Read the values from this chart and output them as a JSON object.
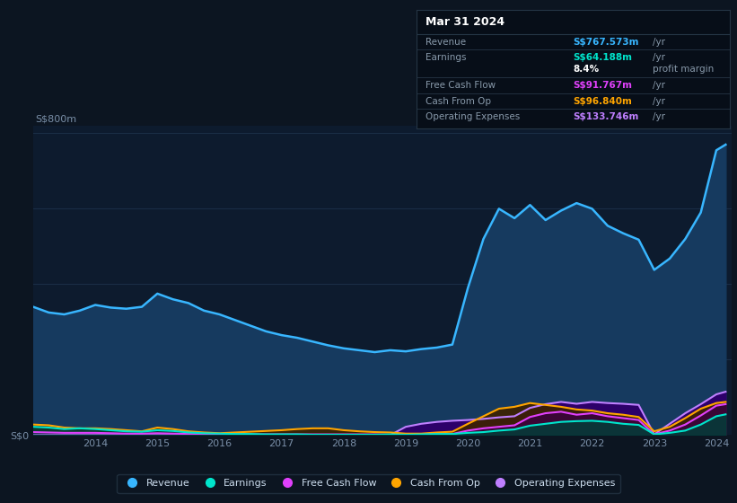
{
  "bg_color": "#0c1521",
  "plot_bg_color": "#0d1b2e",
  "grid_color": "#1a2d45",
  "x_ticks": [
    "2014",
    "2015",
    "2016",
    "2017",
    "2018",
    "2019",
    "2020",
    "2021",
    "2022",
    "2023",
    "2024"
  ],
  "info_box": {
    "date": "Mar 31 2024",
    "rows": [
      {
        "label": "Revenue",
        "value": "S$767.573m",
        "unit": "/yr",
        "color": "#38b6ff"
      },
      {
        "label": "Earnings",
        "value": "S$64.188m",
        "unit": "/yr",
        "color": "#00e5cc"
      },
      {
        "label": "",
        "value": "8.4%",
        "unit": "profit margin",
        "color": "#ffffff"
      },
      {
        "label": "Free Cash Flow",
        "value": "S$91.767m",
        "unit": "/yr",
        "color": "#e040fb"
      },
      {
        "label": "Cash From Op",
        "value": "S$96.840m",
        "unit": "/yr",
        "color": "#ffa500"
      },
      {
        "label": "Operating Expenses",
        "value": "S$133.746m",
        "unit": "/yr",
        "color": "#bf7fff"
      }
    ]
  },
  "series": {
    "revenue": {
      "color": "#38b6ff",
      "fill_color": "#163a5f",
      "x": [
        2013.0,
        2013.25,
        2013.5,
        2013.75,
        2014.0,
        2014.25,
        2014.5,
        2014.75,
        2015.0,
        2015.25,
        2015.5,
        2015.75,
        2016.0,
        2016.25,
        2016.5,
        2016.75,
        2017.0,
        2017.25,
        2017.5,
        2017.75,
        2018.0,
        2018.25,
        2018.5,
        2018.75,
        2019.0,
        2019.25,
        2019.5,
        2019.75,
        2020.0,
        2020.25,
        2020.5,
        2020.75,
        2021.0,
        2021.25,
        2021.5,
        2021.75,
        2022.0,
        2022.25,
        2022.5,
        2022.75,
        2023.0,
        2023.25,
        2023.5,
        2023.75,
        2024.0,
        2024.15
      ],
      "y": [
        340,
        325,
        320,
        330,
        345,
        338,
        335,
        340,
        375,
        360,
        350,
        330,
        320,
        305,
        290,
        275,
        265,
        258,
        248,
        238,
        230,
        225,
        220,
        225,
        222,
        228,
        232,
        240,
        390,
        520,
        600,
        575,
        610,
        570,
        595,
        615,
        600,
        555,
        535,
        518,
        438,
        468,
        520,
        590,
        755,
        770
      ]
    },
    "earnings": {
      "color": "#00e5cc",
      "fill_color": "#00403a",
      "x": [
        2013.0,
        2013.25,
        2013.5,
        2013.75,
        2014.0,
        2014.25,
        2014.5,
        2014.75,
        2015.0,
        2015.25,
        2015.5,
        2015.75,
        2016.0,
        2016.25,
        2016.5,
        2016.75,
        2017.0,
        2017.25,
        2017.5,
        2017.75,
        2018.0,
        2018.25,
        2018.5,
        2018.75,
        2019.0,
        2019.25,
        2019.5,
        2019.75,
        2020.0,
        2020.25,
        2020.5,
        2020.75,
        2021.0,
        2021.25,
        2021.5,
        2021.75,
        2022.0,
        2022.25,
        2022.5,
        2022.75,
        2023.0,
        2023.25,
        2023.5,
        2023.75,
        2024.0,
        2024.15
      ],
      "y": [
        22,
        20,
        16,
        18,
        16,
        13,
        10,
        9,
        13,
        11,
        7,
        5,
        4,
        3,
        3,
        2,
        2,
        2,
        1,
        1,
        1,
        1,
        1,
        2,
        1,
        2,
        3,
        3,
        6,
        8,
        12,
        15,
        25,
        30,
        35,
        37,
        38,
        35,
        30,
        27,
        2,
        6,
        12,
        28,
        50,
        55
      ]
    },
    "free_cash_flow": {
      "color": "#e040fb",
      "fill_color": "#3a0040",
      "x": [
        2013.0,
        2013.25,
        2013.5,
        2013.75,
        2014.0,
        2014.25,
        2014.5,
        2014.75,
        2015.0,
        2015.25,
        2015.5,
        2015.75,
        2016.0,
        2016.25,
        2016.5,
        2016.75,
        2017.0,
        2017.25,
        2017.5,
        2017.75,
        2018.0,
        2018.25,
        2018.5,
        2018.75,
        2019.0,
        2019.25,
        2019.5,
        2019.75,
        2020.0,
        2020.25,
        2020.5,
        2020.75,
        2021.0,
        2021.25,
        2021.5,
        2021.75,
        2022.0,
        2022.25,
        2022.5,
        2022.75,
        2023.0,
        2023.25,
        2023.5,
        2023.75,
        2024.0,
        2024.15
      ],
      "y": [
        8,
        7,
        6,
        6,
        6,
        5,
        4,
        4,
        5,
        4,
        3,
        3,
        3,
        2,
        2,
        2,
        2,
        2,
        2,
        2,
        2,
        2,
        2,
        1,
        0,
        1,
        2,
        3,
        12,
        18,
        22,
        26,
        48,
        58,
        62,
        54,
        58,
        50,
        45,
        40,
        2,
        12,
        28,
        52,
        78,
        82
      ]
    },
    "cash_from_op": {
      "color": "#ffa500",
      "fill_color": "#3d2200",
      "x": [
        2013.0,
        2013.25,
        2013.5,
        2013.75,
        2014.0,
        2014.25,
        2014.5,
        2014.75,
        2015.0,
        2015.25,
        2015.5,
        2015.75,
        2016.0,
        2016.25,
        2016.5,
        2016.75,
        2017.0,
        2017.25,
        2017.5,
        2017.75,
        2018.0,
        2018.25,
        2018.5,
        2018.75,
        2019.0,
        2019.25,
        2019.5,
        2019.75,
        2020.0,
        2020.25,
        2020.5,
        2020.75,
        2021.0,
        2021.25,
        2021.5,
        2021.75,
        2022.0,
        2022.25,
        2022.5,
        2022.75,
        2023.0,
        2023.25,
        2023.5,
        2023.75,
        2024.0,
        2024.15
      ],
      "y": [
        28,
        26,
        20,
        18,
        18,
        16,
        13,
        10,
        20,
        16,
        10,
        7,
        5,
        7,
        9,
        11,
        13,
        16,
        18,
        18,
        13,
        10,
        8,
        7,
        4,
        4,
        7,
        9,
        30,
        50,
        70,
        75,
        85,
        80,
        75,
        68,
        65,
        58,
        54,
        48,
        10,
        22,
        45,
        70,
        85,
        88
      ]
    },
    "operating_expenses": {
      "color": "#bf7fff",
      "fill_color": "#2d006a",
      "x": [
        2013.0,
        2013.25,
        2013.5,
        2013.75,
        2014.0,
        2014.25,
        2014.5,
        2014.75,
        2015.0,
        2015.25,
        2015.5,
        2015.75,
        2016.0,
        2016.25,
        2016.5,
        2016.75,
        2017.0,
        2017.25,
        2017.5,
        2017.75,
        2018.0,
        2018.25,
        2018.5,
        2018.75,
        2019.0,
        2019.25,
        2019.5,
        2019.75,
        2020.0,
        2020.25,
        2020.5,
        2020.75,
        2021.0,
        2021.25,
        2021.5,
        2021.75,
        2022.0,
        2022.25,
        2022.5,
        2022.75,
        2023.0,
        2023.25,
        2023.5,
        2023.75,
        2024.0,
        2024.15
      ],
      "y": [
        0,
        0,
        0,
        0,
        0,
        0,
        0,
        0,
        0,
        0,
        0,
        0,
        0,
        0,
        0,
        0,
        0,
        0,
        0,
        0,
        0,
        0,
        0,
        0,
        22,
        30,
        35,
        38,
        40,
        43,
        47,
        50,
        72,
        82,
        88,
        83,
        88,
        85,
        83,
        80,
        2,
        30,
        58,
        82,
        108,
        115
      ]
    }
  },
  "legend": [
    {
      "label": "Revenue",
      "color": "#38b6ff"
    },
    {
      "label": "Earnings",
      "color": "#00e5cc"
    },
    {
      "label": "Free Cash Flow",
      "color": "#e040fb"
    },
    {
      "label": "Cash From Op",
      "color": "#ffa500"
    },
    {
      "label": "Operating Expenses",
      "color": "#bf7fff"
    }
  ]
}
